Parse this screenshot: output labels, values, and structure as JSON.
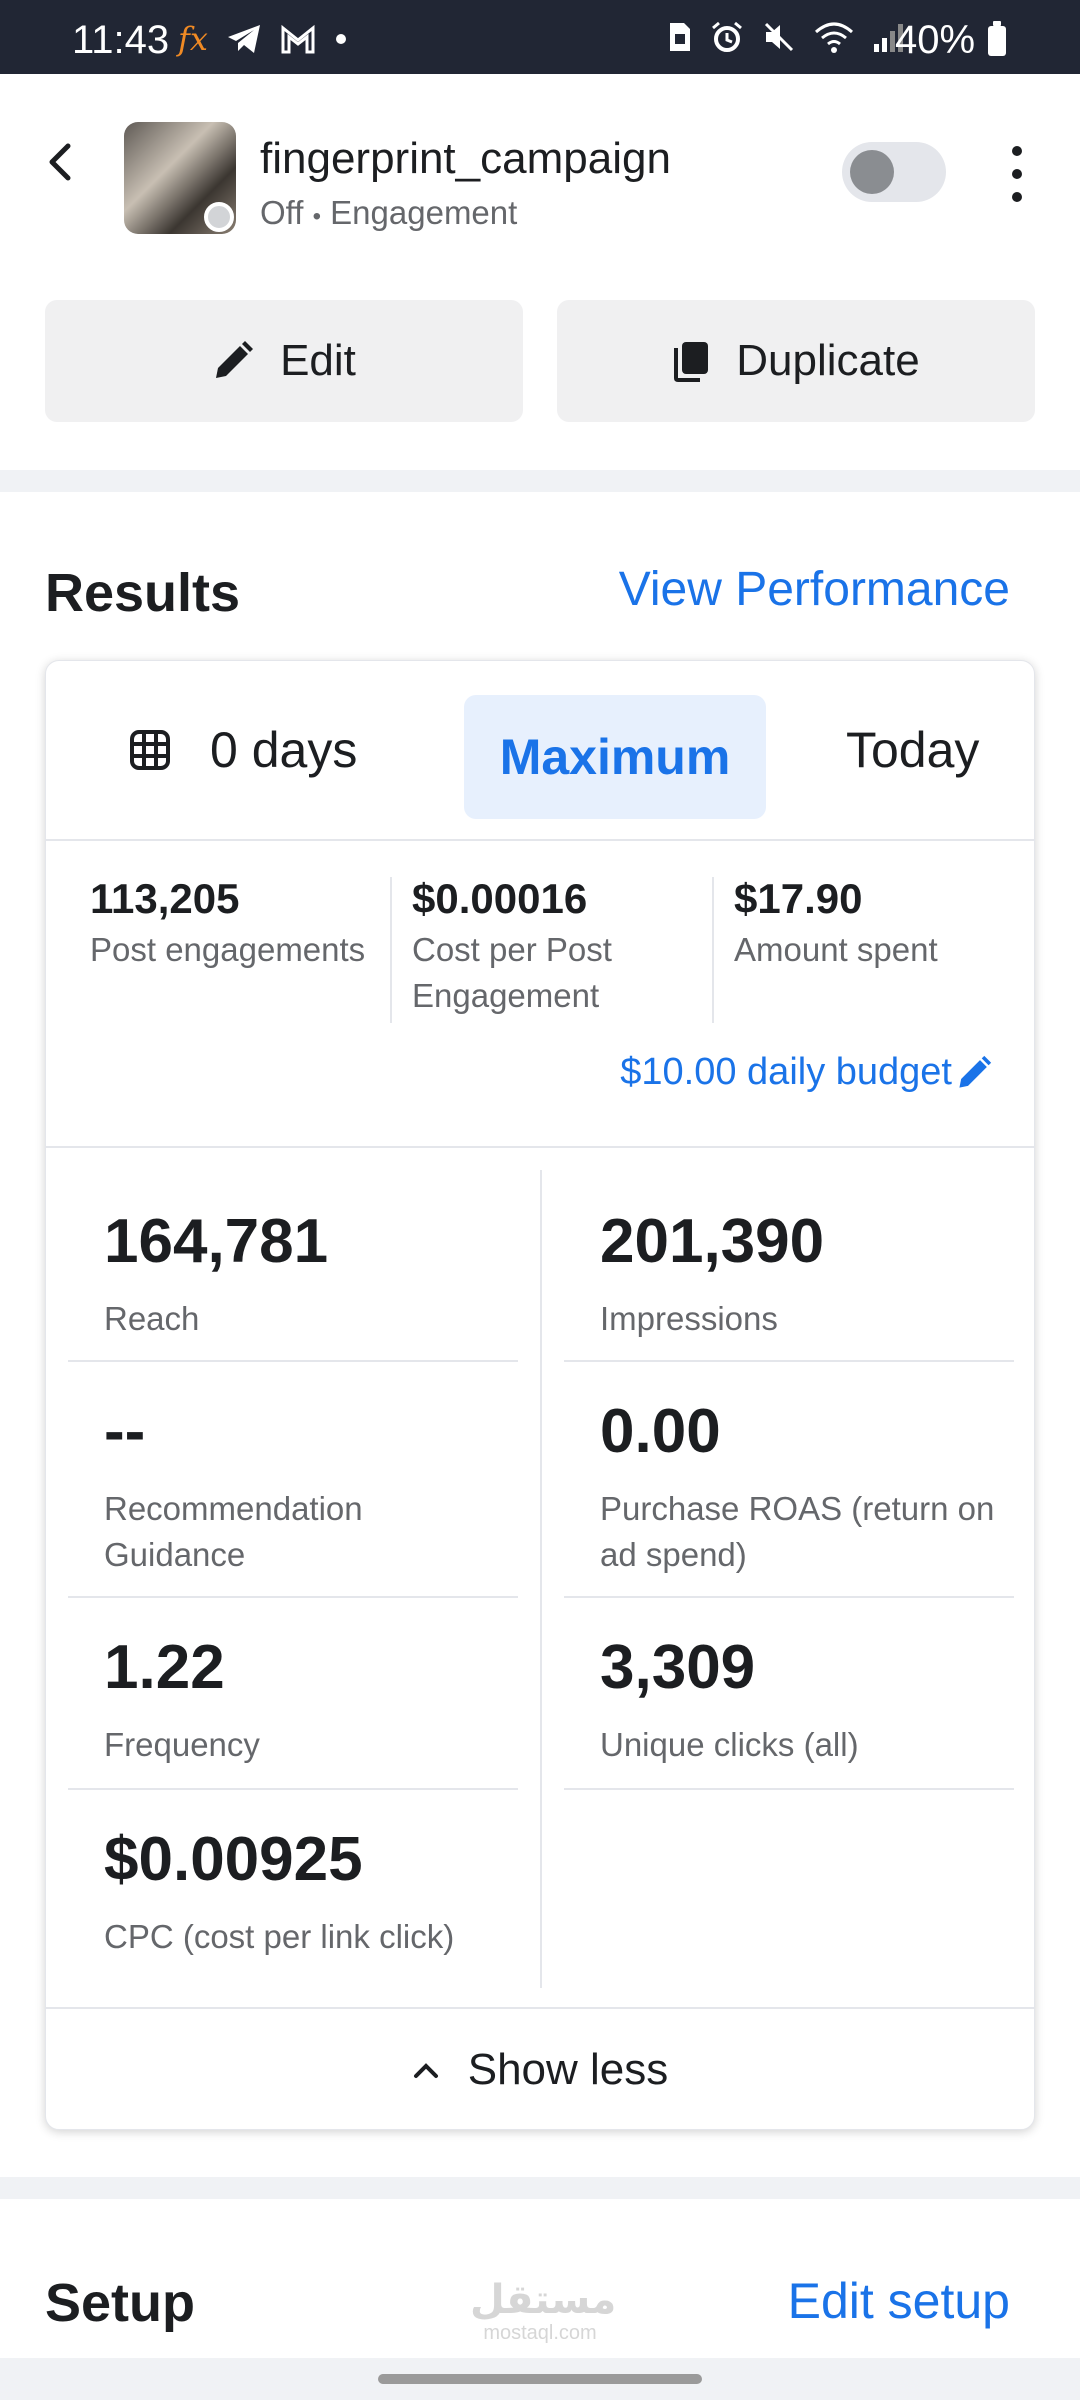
{
  "status_bar": {
    "time": "11:43",
    "battery": "40%",
    "left_icons": [
      "fx-icon",
      "telegram-icon",
      "gmail-icon",
      "dot-icon"
    ],
    "right_icons": [
      "sim-icon",
      "alarm-icon",
      "mute-icon",
      "wifi-icon",
      "signal-icon",
      "battery-icon"
    ]
  },
  "header": {
    "campaign_name": "fingerprint_campaign",
    "status": "Off",
    "separator": "•",
    "objective": "Engagement",
    "toggle_on": false
  },
  "actions": {
    "edit_label": "Edit",
    "duplicate_label": "Duplicate"
  },
  "results": {
    "title": "Results",
    "view_performance": "View Performance",
    "range": {
      "days_label": "0 days",
      "selected": "Maximum",
      "today": "Today"
    },
    "summary": [
      {
        "value": "113,205",
        "label": "Post engagements"
      },
      {
        "value": "$0.00016",
        "label": "Cost per Post Engagement"
      },
      {
        "value": "$17.90",
        "label": "Amount spent"
      }
    ],
    "budget": "$10.00 daily budget",
    "metrics_left": [
      {
        "value": "164,781",
        "label": "Reach"
      },
      {
        "value": "--",
        "label": "Recommendation Guidance"
      },
      {
        "value": "1.22",
        "label": "Frequency"
      },
      {
        "value": "$0.00925",
        "label": "CPC (cost per link click)"
      }
    ],
    "metrics_right": [
      {
        "value": "201,390",
        "label": "Impressions"
      },
      {
        "value": "0.00",
        "label": "Purchase ROAS (return on ad spend)"
      },
      {
        "value": "3,309",
        "label": "Unique clicks (all)"
      }
    ],
    "show_less": "Show less"
  },
  "setup": {
    "title": "Setup",
    "edit_setup": "Edit setup"
  },
  "watermark": {
    "arabic": "مستقل",
    "latin": "mostaql.com"
  },
  "colors": {
    "accent": "#1a73e8",
    "status_bar": "#212634",
    "button_bg": "#f0f0f1"
  }
}
